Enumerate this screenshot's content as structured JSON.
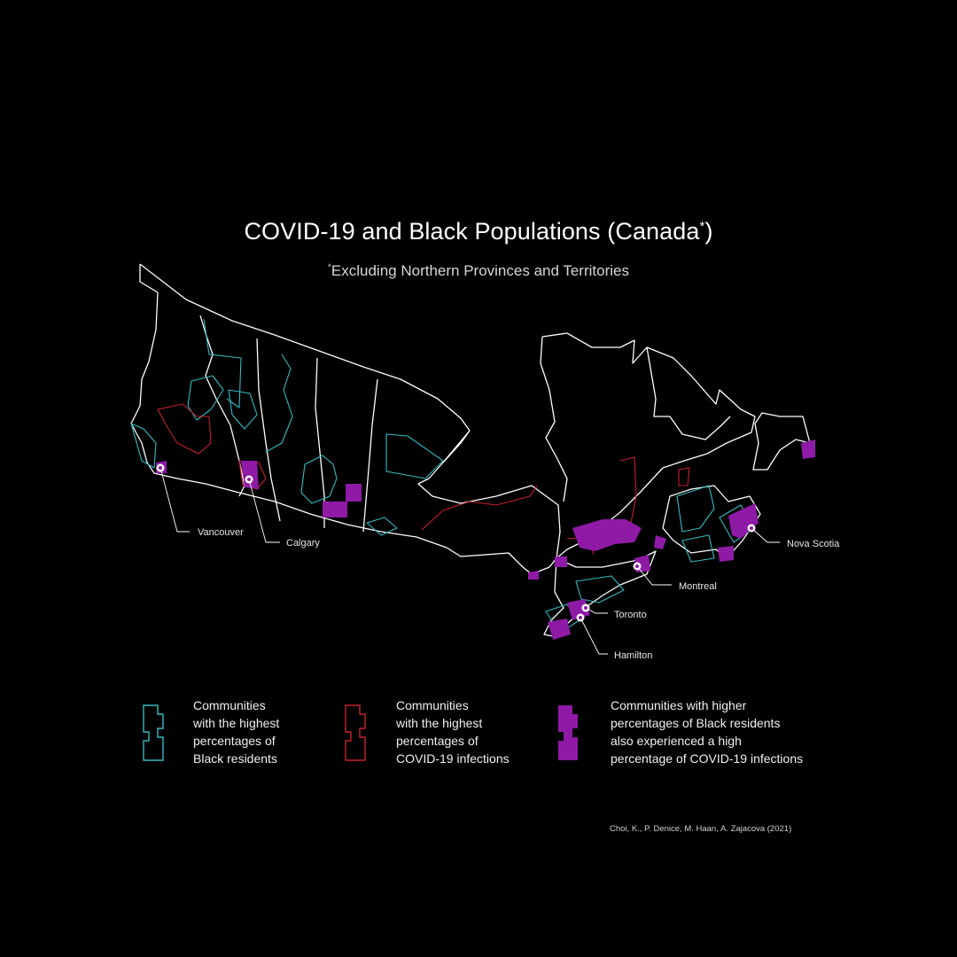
{
  "title": "COVID-19 and Black Populations (Canada",
  "title_star": "*",
  "title_close": ")",
  "subtitle_star": "*",
  "subtitle": "Excluding Northern Provinces and Territories",
  "colors": {
    "background": "#000000",
    "border": "#ffffff",
    "black_residents": "#2fbcc2",
    "covid_infections": "#c8202a",
    "overlap": "#8e1aa6"
  },
  "cities": [
    {
      "name": "Vancouver"
    },
    {
      "name": "Calgary"
    },
    {
      "name": "Montreal"
    },
    {
      "name": "Toronto"
    },
    {
      "name": "Hamilton"
    },
    {
      "name": "Nova Scotia"
    }
  ],
  "legend": [
    {
      "lines": [
        "Communities",
        "with the highest",
        "percentages of",
        "Black residents"
      ],
      "icon": "outline-cyan-icon"
    },
    {
      "lines": [
        "Communities",
        "with the highest",
        "percentages of",
        "COVID-19 infections"
      ],
      "icon": "outline-red-icon"
    },
    {
      "lines": [
        "Communities with higher",
        "percentages of Black residents",
        "also experienced a high",
        "percentage of COVID-19 infections"
      ],
      "icon": "filled-purple-icon"
    }
  ],
  "credit": "Choi, K., P. Denice, M. Haan, A. Zajacova (2021)"
}
